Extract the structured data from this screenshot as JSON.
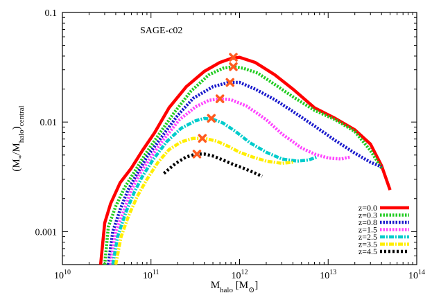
{
  "chart_data": {
    "type": "line",
    "title": "",
    "annotation": "SAGE-c02",
    "xlabel": {
      "main": "M",
      "sub": "halo",
      "unit_open": " [M",
      "unit_sub": "⊙",
      "unit_close": "]"
    },
    "ylabel": {
      "open": "(M",
      "sub1": "*",
      "mid": "/M",
      "sub2": "halo",
      "close": ")",
      "sub3": "central"
    },
    "x_scale": "log",
    "y_scale": "log",
    "xlim": [
      10000000000.0,
      100000000000000.0
    ],
    "ylim": [
      0.0005,
      0.1
    ],
    "x_ticks": [
      {
        "value": 10000000000.0,
        "base": "10",
        "exp": "10"
      },
      {
        "value": 100000000000.0,
        "base": "10",
        "exp": "11"
      },
      {
        "value": 1000000000000.0,
        "base": "10",
        "exp": "12"
      },
      {
        "value": 10000000000000.0,
        "base": "10",
        "exp": "13"
      },
      {
        "value": 100000000000000.0,
        "base": "10",
        "exp": "14"
      }
    ],
    "y_ticks": [
      {
        "value": 0.1,
        "label": "0.1"
      },
      {
        "value": 0.01,
        "label": "0.01"
      },
      {
        "value": 0.001,
        "label": "0.001"
      }
    ],
    "grid": false,
    "legend_position": "bottom-right",
    "series": [
      {
        "name": "z=0.0",
        "color": "#ff0000",
        "dash": "solid",
        "width": 4.5,
        "x": [
          27000000000.0,
          30000000000.0,
          35000000000.0,
          45000000000.0,
          60000000000.0,
          80000000000.0,
          110000000000.0,
          160000000000.0,
          250000000000.0,
          400000000000.0,
          600000000000.0,
          800000000000.0,
          1000000000000.0,
          1500000000000.0,
          2500000000000.0,
          4000000000000.0,
          7000000000000.0,
          12000000000000.0,
          20000000000000.0,
          30000000000000.0,
          40000000000000.0,
          50000000000000.0
        ],
        "y": [
          0.0005,
          0.0012,
          0.0018,
          0.0028,
          0.0038,
          0.0055,
          0.008,
          0.0135,
          0.021,
          0.029,
          0.035,
          0.038,
          0.039,
          0.035,
          0.027,
          0.02,
          0.0135,
          0.0108,
          0.0085,
          0.0063,
          0.004,
          0.0024
        ],
        "peak": {
          "x": 850000000000.0,
          "y": 0.039
        }
      },
      {
        "name": "z=0.3",
        "color": "#22cc22",
        "dash": "dotted",
        "width": 4.5,
        "x": [
          30000000000.0,
          33000000000.0,
          40000000000.0,
          50000000000.0,
          65000000000.0,
          85000000000.0,
          120000000000.0,
          180000000000.0,
          280000000000.0,
          450000000000.0,
          650000000000.0,
          850000000000.0,
          1100000000000.0,
          1600000000000.0,
          2500000000000.0,
          4000000000000.0,
          7000000000000.0,
          12000000000000.0,
          20000000000000.0,
          30000000000000.0,
          40000000000000.0
        ],
        "y": [
          0.0005,
          0.0011,
          0.0017,
          0.0025,
          0.0035,
          0.005,
          0.0075,
          0.012,
          0.019,
          0.027,
          0.031,
          0.032,
          0.031,
          0.028,
          0.022,
          0.017,
          0.0128,
          0.0105,
          0.0082,
          0.0055,
          0.0038
        ]
      },
      {
        "name": "z=0.8",
        "color": "#1a1acc",
        "dash": "dotted",
        "width": 4.5,
        "x": [
          33000000000.0,
          37000000000.0,
          45000000000.0,
          55000000000.0,
          70000000000.0,
          90000000000.0,
          130000000000.0,
          200000000000.0,
          300000000000.0,
          500000000000.0,
          750000000000.0,
          1000000000000.0,
          1500000000000.0,
          2500000000000.0,
          4000000000000.0,
          7000000000000.0,
          12000000000000.0,
          20000000000000.0,
          30000000000000.0,
          40000000000000.0
        ],
        "y": [
          0.0005,
          0.001,
          0.0016,
          0.0024,
          0.0034,
          0.0048,
          0.0072,
          0.0115,
          0.0165,
          0.021,
          0.023,
          0.023,
          0.02,
          0.016,
          0.0125,
          0.0092,
          0.0068,
          0.0052,
          0.0043,
          0.0039
        ]
      },
      {
        "name": "z=1.5",
        "color": "#ff44ff",
        "dash": "dotted",
        "width": 4.5,
        "x": [
          35000000000.0,
          40000000000.0,
          50000000000.0,
          60000000000.0,
          75000000000.0,
          100000000000.0,
          140000000000.0,
          210000000000.0,
          320000000000.0,
          450000000000.0,
          600000000000.0,
          800000000000.0,
          1200000000000.0,
          2000000000000.0,
          3000000000000.0,
          5000000000000.0,
          7000000000000.0,
          10000000000000.0,
          14000000000000.0,
          18000000000000.0
        ],
        "y": [
          0.0005,
          0.001,
          0.0016,
          0.0024,
          0.0034,
          0.0048,
          0.007,
          0.0105,
          0.0138,
          0.0158,
          0.0163,
          0.016,
          0.014,
          0.0105,
          0.0078,
          0.0058,
          0.0051,
          0.0047,
          0.0046,
          0.0048
        ]
      },
      {
        "name": "z=2.5",
        "color": "#00cccc",
        "dash": "dashdot",
        "width": 4.5,
        "x": [
          37000000000.0,
          42000000000.0,
          52000000000.0,
          65000000000.0,
          80000000000.0,
          105000000000.0,
          150000000000.0,
          220000000000.0,
          320000000000.0,
          400000000000.0,
          500000000000.0,
          650000000000.0,
          900000000000.0,
          1300000000000.0,
          2000000000000.0,
          3000000000000.0,
          4500000000000.0,
          6000000000000.0,
          7500000000000.0
        ],
        "y": [
          0.0005,
          0.0009,
          0.0015,
          0.0023,
          0.0032,
          0.0045,
          0.0066,
          0.0088,
          0.0103,
          0.0108,
          0.0106,
          0.0098,
          0.0082,
          0.0065,
          0.0053,
          0.0046,
          0.0044,
          0.0045,
          0.0048
        ]
      },
      {
        "name": "z=3.5",
        "color": "#ffee00",
        "dash": "dashdot",
        "width": 4.5,
        "x": [
          40000000000.0,
          46000000000.0,
          56000000000.0,
          70000000000.0,
          90000000000.0,
          120000000000.0,
          160000000000.0,
          220000000000.0,
          300000000000.0,
          400000000000.0,
          550000000000.0,
          750000000000.0,
          1000000000000.0,
          1400000000000.0,
          2000000000000.0,
          3000000000000.0,
          4000000000000.0
        ],
        "y": [
          0.0005,
          0.0009,
          0.0014,
          0.0021,
          0.003,
          0.0043,
          0.0056,
          0.0066,
          0.0071,
          0.0071,
          0.0067,
          0.006,
          0.0053,
          0.0048,
          0.0044,
          0.0042,
          0.0043
        ]
      },
      {
        "name": "z=4.5",
        "color": "#000000",
        "dash": "dashed",
        "width": 4.5,
        "x": [
          140000000000.0,
          190000000000.0,
          250000000000.0,
          320000000000.0,
          400000000000.0,
          500000000000.0,
          650000000000.0,
          850000000000.0,
          1100000000000.0,
          1400000000000.0,
          1800000000000.0
        ],
        "y": [
          0.0034,
          0.0042,
          0.0048,
          0.0051,
          0.0051,
          0.0049,
          0.0045,
          0.0041,
          0.0038,
          0.0035,
          0.0032
        ]
      }
    ],
    "peak_markers": [
      {
        "x": 850000000000.0,
        "y": 0.039
      },
      {
        "x": 850000000000.0,
        "y": 0.032
      },
      {
        "x": 780000000000.0,
        "y": 0.023
      },
      {
        "x": 600000000000.0,
        "y": 0.0163
      },
      {
        "x": 480000000000.0,
        "y": 0.0108
      },
      {
        "x": 380000000000.0,
        "y": 0.0071
      },
      {
        "x": 330000000000.0,
        "y": 0.0051
      }
    ],
    "marker_color": "#ff5a1f"
  }
}
